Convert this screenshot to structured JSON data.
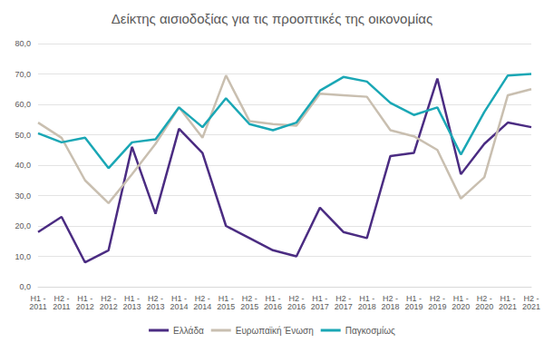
{
  "chart_data": {
    "type": "line",
    "title": "Δείκτης αισιοδοξίας για τις προοπτικές της οικονομίας",
    "categories": [
      "H1 - 2011",
      "H2 - 2011",
      "H1 - 2012",
      "H2 - 2012",
      "H1 - 2013",
      "H2 - 2013",
      "H1 - 2014",
      "H2 - 2014",
      "H1 - 2015",
      "H2 - 2015",
      "H1 - 2016",
      "H2 - 2016",
      "H1 - 2017",
      "H2 - 2017",
      "H1 - 2018",
      "H2 - 2018",
      "H1 - 2019",
      "H2 - 2019",
      "H1 - 2020",
      "H2 - 2020",
      "H1 - 2021",
      "H2 - 2021"
    ],
    "series": [
      {
        "name": "Ελλάδα",
        "color": "#4b2c82",
        "values": [
          18,
          23,
          8,
          12,
          46,
          24,
          52,
          44,
          20,
          16,
          12,
          10,
          26,
          18,
          16,
          43,
          44,
          68.5,
          37,
          47,
          54,
          52.5
        ]
      },
      {
        "name": "Ευρωπαϊκή Ένωση",
        "color": "#c9bfb0",
        "values": [
          54,
          49,
          35,
          27.5,
          37,
          47,
          59,
          49,
          69.5,
          54.5,
          53.5,
          53,
          63.5,
          63,
          62.5,
          51.5,
          49.5,
          45,
          29,
          36,
          63,
          65
        ]
      },
      {
        "name": "Παγκοσμίως",
        "color": "#1aa7b5",
        "values": [
          50.5,
          47.5,
          49,
          39,
          47.5,
          48.5,
          59,
          52.5,
          62,
          53.5,
          51.5,
          54,
          64.5,
          69,
          67.5,
          60.5,
          56.5,
          59,
          43.5,
          57.5,
          69.5,
          70
        ]
      }
    ],
    "ylim": [
      0,
      80
    ],
    "yticks": [
      {
        "value": 0,
        "label": "0,0"
      },
      {
        "value": 10,
        "label": "10,0"
      },
      {
        "value": 20,
        "label": "20,0"
      },
      {
        "value": 30,
        "label": "30,0"
      },
      {
        "value": 40,
        "label": "40,0"
      },
      {
        "value": 50,
        "label": "50,0"
      },
      {
        "value": 60,
        "label": "60,0"
      },
      {
        "value": 70,
        "label": "70,0"
      },
      {
        "value": 80,
        "label": "80,0"
      }
    ],
    "grid": true,
    "legend": "bottom"
  }
}
